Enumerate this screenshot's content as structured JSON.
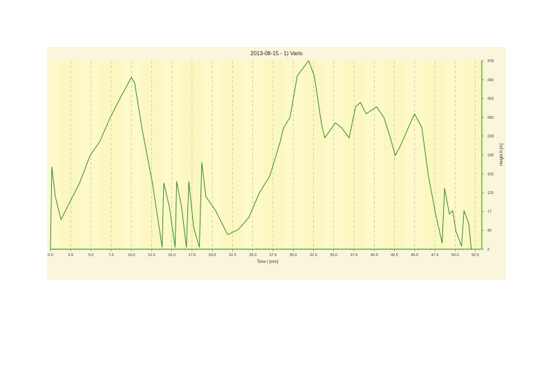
{
  "chart_data": {
    "type": "line",
    "title": "2013-08-15 - 1) Vario",
    "xlabel": "Time  t  [min]",
    "ylabel": "Height  h  [m]",
    "xlim": [
      0,
      53.3
    ],
    "ylim": [
      2,
      378
    ],
    "xticks": [
      "0.0",
      "2.5",
      "5.0",
      "7.5",
      "10.0",
      "12.5",
      "15.0",
      "17.5",
      "20.0",
      "22.5",
      "25.0",
      "27.5",
      "30.0",
      "32.5",
      "35.0",
      "37.5",
      "40.0",
      "42.5",
      "45.0",
      "47.5",
      "50.0",
      "52.5"
    ],
    "yticks": [
      "2",
      "40",
      "77",
      "115",
      "152",
      "190",
      "228",
      "265",
      "303",
      "340",
      "378"
    ],
    "grid": "vertical dashed",
    "line_color": "#2e8b2e",
    "x": [
      0,
      0.17,
      0.6,
      1.3,
      2.3,
      3.6,
      4.9,
      6.1,
      7.4,
      8.7,
      10.0,
      10.4,
      11.3,
      12.6,
      13.8,
      14.0,
      14.7,
      15.4,
      15.6,
      16.2,
      16.8,
      17.1,
      17.7,
      18.4,
      18.7,
      19.2,
      20.4,
      21.9,
      23.2,
      24.5,
      25.8,
      27.1,
      28.4,
      28.8,
      29.6,
      30.5,
      31.9,
      32.6,
      33.5,
      33.9,
      35.2,
      36.0,
      36.9,
      37.7,
      38.3,
      39.0,
      40.3,
      41.2,
      42.0,
      42.6,
      43.3,
      44.2,
      45.0,
      45.9,
      46.7,
      47.6,
      48.4,
      48.7,
      49.3,
      49.7,
      50.1,
      50.8,
      51.1,
      51.7,
      52.0,
      53.3
    ],
    "y": [
      2,
      166,
      107,
      61,
      93,
      134,
      189,
      217,
      265,
      306,
      345,
      334,
      244,
      134,
      6,
      134,
      86,
      6,
      137,
      86,
      6,
      137,
      45,
      6,
      175,
      107,
      79,
      31,
      41,
      65,
      114,
      148,
      217,
      244,
      265,
      348,
      378,
      348,
      251,
      224,
      254,
      244,
      224,
      286,
      295,
      272,
      286,
      265,
      224,
      189,
      210,
      244,
      272,
      244,
      148,
      72,
      14,
      123,
      72,
      79,
      38,
      8,
      79,
      52,
      2,
      2
    ]
  }
}
